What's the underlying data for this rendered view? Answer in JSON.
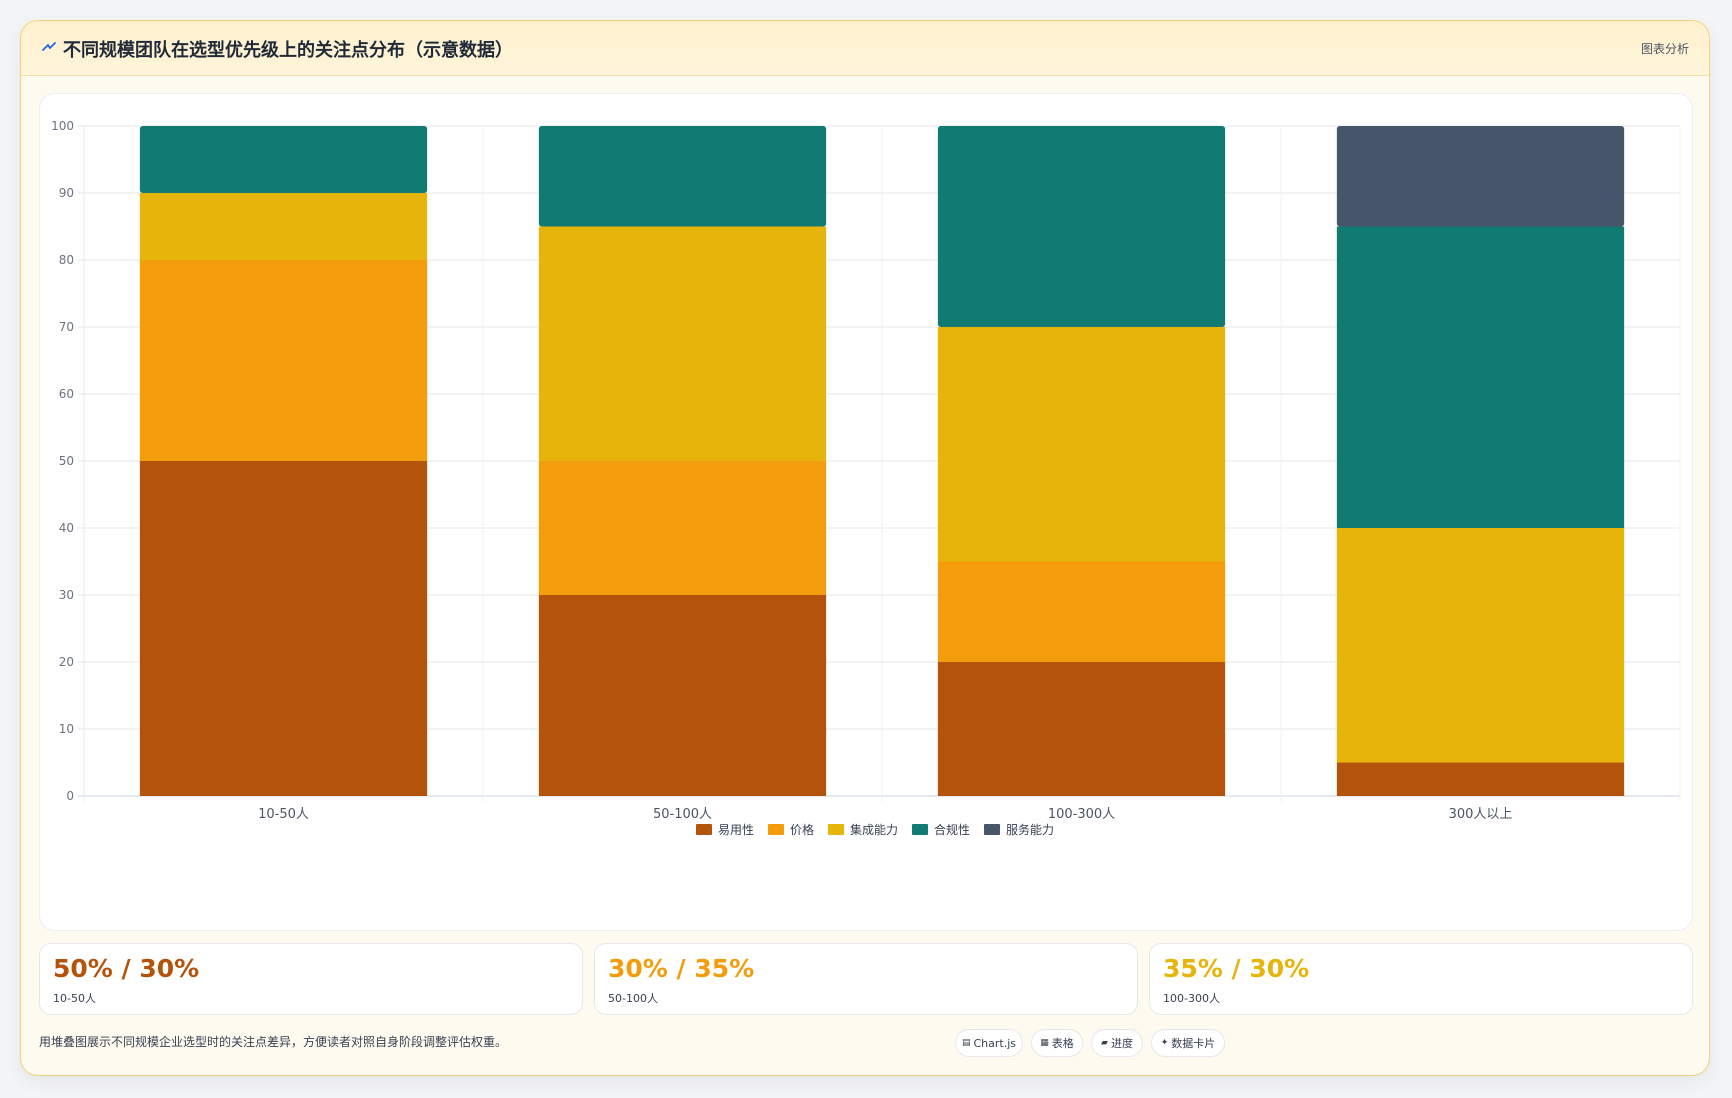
{
  "header": {
    "title": "不同规模团队在选型优先级上的关注点分布（示意数据）",
    "action_label": "图表分析"
  },
  "chart_data": {
    "type": "bar",
    "stacked": true,
    "categories": [
      "10-50人",
      "50-100人",
      "100-300人",
      "300人以上"
    ],
    "series": [
      {
        "name": "易用性",
        "color": "#b4530b",
        "values": [
          50,
          30,
          20,
          5
        ]
      },
      {
        "name": "价格",
        "color": "#f39c0c",
        "values": [
          30,
          20,
          15,
          0
        ]
      },
      {
        "name": "集成能力",
        "color": "#e6b40b",
        "values": [
          10,
          35,
          35,
          35
        ]
      },
      {
        "name": "合规性",
        "color": "#117a72",
        "values": [
          10,
          15,
          30,
          45
        ]
      },
      {
        "name": "服务能力",
        "color": "#47556a",
        "values": [
          0,
          0,
          0,
          15
        ]
      }
    ],
    "ylim": [
      0,
      100
    ],
    "yticks": [
      0,
      10,
      20,
      30,
      40,
      50,
      60,
      70,
      80,
      90,
      100
    ],
    "grid": true,
    "legend_position": "bottom"
  },
  "stats": [
    {
      "value": "50% / 30%",
      "label": "10-50人",
      "color": "#b4530b"
    },
    {
      "value": "30% / 35%",
      "label": "50-100人",
      "color": "#f39c0c"
    },
    {
      "value": "35% / 30%",
      "label": "100-300人",
      "color": "#e6b40b"
    }
  ],
  "footer": {
    "note": "用堆叠图展示不同规模企业选型时的关注点差异，方便读者对照自身阶段调整评估权重。",
    "tags": [
      {
        "icon": "chart-icon",
        "label": "Chart.js"
      },
      {
        "icon": "table-icon",
        "label": "表格"
      },
      {
        "icon": "progress-icon",
        "label": "进度"
      },
      {
        "icon": "sparkle-icon",
        "label": "数据卡片"
      }
    ]
  }
}
